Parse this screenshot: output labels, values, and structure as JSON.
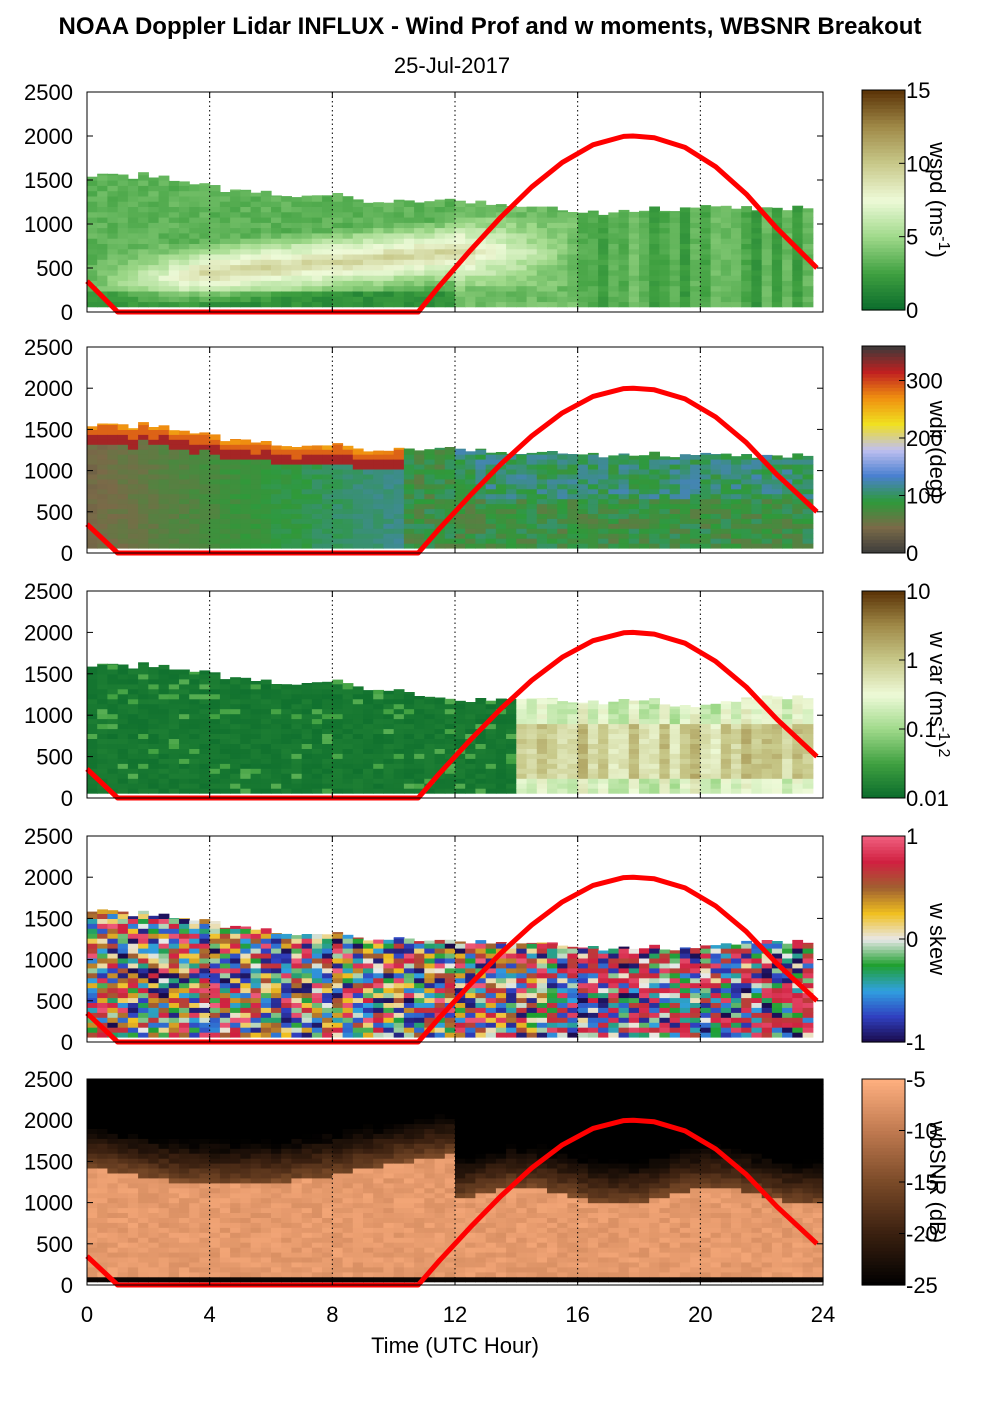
{
  "figure": {
    "title": "NOAA Doppler Lidar INFLUX - Wind Prof and w moments, WBSNR Breakout",
    "subtitle": "25-Jul-2017",
    "xlabel": "Time (UTC Hour)"
  },
  "colors": {
    "sun_curve": "#ff0000",
    "frame": "#000000",
    "background": "#ffffff"
  },
  "chart_data": [
    {
      "type": "heatmap",
      "variable": "wspd",
      "x_range": [
        0,
        24
      ],
      "xticks": [
        0,
        4,
        8,
        12,
        16,
        20,
        24
      ],
      "ylim": [
        0,
        2500
      ],
      "yticks": [
        0,
        500,
        1000,
        1500,
        2000,
        2500
      ],
      "grid": "vertical dotted at 4-hour intervals",
      "colorbar": {
        "label_main": "wspd (ms",
        "label_sup": "-1",
        "label_end": ")",
        "ticks": [
          "15",
          "10",
          "5",
          "0"
        ],
        "tick_values": [
          15,
          10,
          5,
          0
        ],
        "range": [
          0,
          15
        ],
        "colors": [
          "#0a6b2c",
          "#3fa040",
          "#9fd98a",
          "#eefad8",
          "#c8c98a",
          "#a08a48",
          "#5a3206"
        ]
      },
      "top_m": {
        "x": [
          0,
          2,
          4,
          6,
          8,
          10,
          12,
          14,
          16,
          18,
          20,
          22,
          23.8
        ],
        "y": [
          1550,
          1550,
          1420,
          1350,
          1320,
          1250,
          1250,
          1200,
          1130,
          1160,
          1200,
          1150,
          1180
        ]
      }
    },
    {
      "type": "heatmap",
      "variable": "wdir",
      "x_range": [
        0,
        24
      ],
      "xticks": [
        0,
        4,
        8,
        12,
        16,
        20,
        24
      ],
      "ylim": [
        0,
        2500
      ],
      "yticks": [
        0,
        500,
        1000,
        1500,
        2000,
        2500
      ],
      "colorbar": {
        "label_main": "wdir (deg)",
        "ticks": [
          "300",
          "200",
          "100",
          "0"
        ],
        "tick_values": [
          300,
          200,
          100,
          0
        ],
        "range": [
          0,
          360
        ],
        "colors": [
          "#3c3c3c",
          "#7a6a48",
          "#2e9a3a",
          "#4a80d0",
          "#c0c0f0",
          "#f0e020",
          "#f09010",
          "#c02020",
          "#3a3a3a"
        ]
      },
      "top_m": {
        "x": [
          0,
          2,
          4,
          6,
          8,
          10,
          12,
          14,
          16,
          18,
          20,
          22,
          23.8
        ],
        "y": [
          1550,
          1550,
          1420,
          1330,
          1300,
          1250,
          1250,
          1200,
          1200,
          1200,
          1200,
          1150,
          1180
        ]
      }
    },
    {
      "type": "heatmap",
      "variable": "w var",
      "x_range": [
        0,
        24
      ],
      "xticks": [
        0,
        4,
        8,
        12,
        16,
        20,
        24
      ],
      "ylim": [
        0,
        2500
      ],
      "yticks": [
        0,
        500,
        1000,
        1500,
        2000,
        2500
      ],
      "colorbar": {
        "label_main": "w var (ms",
        "label_sup": "-1",
        "label_end": ")",
        "label_sup2": "2",
        "ticks": [
          "10",
          "1",
          "0.1",
          "0.01"
        ],
        "tick_values": [
          10,
          1,
          0.1,
          0.01
        ],
        "scale": "log",
        "range": [
          0.01,
          10
        ],
        "colors": [
          "#0a6b2c",
          "#3fa040",
          "#9fd98a",
          "#eefad8",
          "#c8c98a",
          "#a08a48",
          "#5a3206"
        ]
      },
      "top_m": {
        "x": [
          0,
          2,
          4,
          6,
          8,
          10,
          12,
          14,
          16,
          18,
          20,
          22,
          23.8
        ],
        "y": [
          1600,
          1600,
          1500,
          1400,
          1400,
          1300,
          1150,
          1200,
          1150,
          1200,
          1100,
          1200,
          1200
        ]
      }
    },
    {
      "type": "heatmap",
      "variable": "w skew",
      "x_range": [
        0,
        24
      ],
      "xticks": [
        0,
        4,
        8,
        12,
        16,
        20,
        24
      ],
      "ylim": [
        0,
        2500
      ],
      "yticks": [
        0,
        500,
        1000,
        1500,
        2000,
        2500
      ],
      "colorbar": {
        "label_main": "w skew",
        "ticks": [
          "1",
          "0",
          "-1"
        ],
        "tick_values": [
          1,
          0,
          -1
        ],
        "range": [
          -1,
          1
        ],
        "colors": [
          "#1a0a4a",
          "#3040c0",
          "#30a0e0",
          "#20a030",
          "#e8e8e8",
          "#f0c020",
          "#a06030",
          "#d02040",
          "#f06080"
        ]
      },
      "top_m": {
        "x": [
          0,
          2,
          4,
          6,
          8,
          10,
          12,
          14,
          16,
          18,
          20,
          22,
          23.8
        ],
        "y": [
          1600,
          1550,
          1450,
          1350,
          1300,
          1250,
          1200,
          1200,
          1150,
          1150,
          1150,
          1200,
          1200
        ]
      }
    },
    {
      "type": "heatmap",
      "variable": "wbSNR",
      "x_range": [
        0,
        24
      ],
      "xticks": [
        0,
        4,
        8,
        12,
        16,
        20,
        24
      ],
      "ylim": [
        0,
        2500
      ],
      "yticks": [
        0,
        500,
        1000,
        1500,
        2000,
        2500
      ],
      "colorbar": {
        "label_main": "wbSNR (dB)",
        "ticks": [
          "-5",
          "-10",
          "-15",
          "-20",
          "-25"
        ],
        "tick_values": [
          -5,
          -10,
          -15,
          -20,
          -25
        ],
        "range": [
          -25,
          -5
        ],
        "colors": [
          "#000000",
          "#3a2010",
          "#7a4a28",
          "#c07a50",
          "#ffb080"
        ]
      },
      "top_m": {
        "x": [
          0,
          2,
          4,
          6,
          8,
          10,
          12,
          14,
          16,
          18,
          20,
          22,
          23.8
        ],
        "y": [
          2500,
          2500,
          2500,
          2500,
          2500,
          2500,
          2500,
          2500,
          2500,
          2500,
          2500,
          2500,
          2500
        ]
      }
    }
  ],
  "sun_curve": {
    "x": [
      0,
      1,
      10.8,
      11.5,
      12.5,
      13.5,
      14.5,
      15.5,
      16.5,
      17.5,
      17.8,
      18.5,
      19.5,
      20.5,
      21.5,
      22.5,
      23.8
    ],
    "y": [
      350,
      0,
      0,
      300,
      700,
      1080,
      1420,
      1700,
      1900,
      1995,
      2000,
      1980,
      1870,
      1650,
      1340,
      950,
      500
    ]
  }
}
